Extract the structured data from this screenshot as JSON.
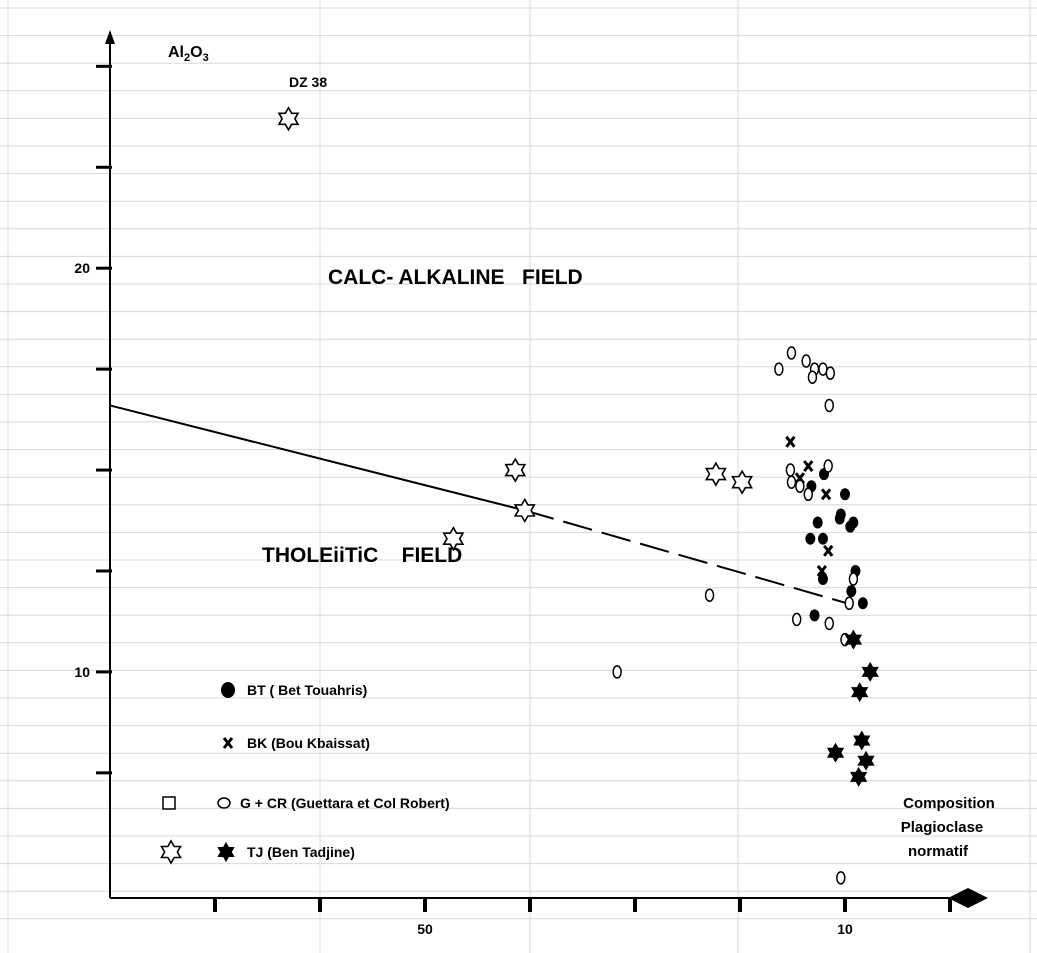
{
  "chart_data": {
    "type": "scatter",
    "title": "",
    "ylabel": {
      "main": "Al",
      "sub1": "2",
      "mid": "O",
      "sub2": "3"
    },
    "xlabel_lines": [
      "Composition",
      "Plagioclase",
      "normatif"
    ],
    "x_tick_labels": [
      {
        "x": 50,
        "text": "50"
      },
      {
        "x": 10,
        "text": "10"
      }
    ],
    "y_tick_labels": [
      {
        "y": 20,
        "text": "20"
      },
      {
        "y": 10,
        "text": "10"
      }
    ],
    "x_ticks": [
      70,
      60,
      50,
      40,
      30,
      20,
      10,
      0
    ],
    "y_ticks": [
      25,
      22.5,
      20,
      17.5,
      15,
      12.5,
      10,
      7.5
    ],
    "xlim": [
      80,
      0
    ],
    "ylim": [
      4.4,
      25.9
    ],
    "fields": {
      "calc_alkaline": "CALC- ALKALINE   FIELD",
      "tholeiitic": "THOLEiiTiC    FIELD"
    },
    "boundary": {
      "solid": [
        [
          80,
          16.6
        ],
        [
          40.5,
          14.0
        ]
      ],
      "dashed": [
        [
          40.5,
          14.0
        ],
        [
          9.8,
          11.7
        ]
      ]
    },
    "annotation": {
      "text": "DZ 38",
      "x": 63,
      "y": 23.7
    },
    "legend": [
      {
        "marker": "filled-circle",
        "text": "BT ( Bet Touahris)"
      },
      {
        "marker": "x",
        "text": "BK (Bou Kbaissat)"
      },
      {
        "marker": "open-square+open-ellipse",
        "text": "G + CR  (Guettara et Col Robert)"
      },
      {
        "marker": "open-star+filled-star",
        "text": "TJ      (Ben Tadjine)"
      }
    ],
    "series": [
      {
        "name": "BT ( Bet Touahris)",
        "marker": "filled-circle",
        "points": [
          [
            13.2,
            14.6
          ],
          [
            12.0,
            14.9
          ],
          [
            10.4,
            13.9
          ],
          [
            13.3,
            13.3
          ],
          [
            12.1,
            13.3
          ],
          [
            9.0,
            12.5
          ],
          [
            9.4,
            12.0
          ],
          [
            8.3,
            11.7
          ],
          [
            12.6,
            13.7
          ],
          [
            12.9,
            11.4
          ],
          [
            9.5,
            13.6
          ],
          [
            12.1,
            12.3
          ],
          [
            10.5,
            13.8
          ],
          [
            10.0,
            14.4
          ],
          [
            9.2,
            13.7
          ]
        ]
      },
      {
        "name": "BK (Bou Kbaissat)",
        "marker": "x",
        "points": [
          [
            15.2,
            15.7
          ],
          [
            14.3,
            14.8
          ],
          [
            11.6,
            13.0
          ],
          [
            13.5,
            15.1
          ],
          [
            11.8,
            14.4
          ],
          [
            12.2,
            12.5
          ]
        ]
      },
      {
        "name": "G + CR  (Guettara et Col Robert)",
        "marker": "open-ellipse",
        "points": [
          [
            15.1,
            17.9
          ],
          [
            16.3,
            17.5
          ],
          [
            13.7,
            17.7
          ],
          [
            12.1,
            17.5
          ],
          [
            11.4,
            17.4
          ],
          [
            12.9,
            17.5
          ],
          [
            13.1,
            17.3
          ],
          [
            11.5,
            16.6
          ],
          [
            15.2,
            15.0
          ],
          [
            11.6,
            15.1
          ],
          [
            15.1,
            14.7
          ],
          [
            13.5,
            14.4
          ],
          [
            14.3,
            14.6
          ],
          [
            9.2,
            12.3
          ],
          [
            9.6,
            11.7
          ],
          [
            14.6,
            11.3
          ],
          [
            11.5,
            11.2
          ],
          [
            22.9,
            11.9
          ],
          [
            31.7,
            10.0
          ],
          [
            10.0,
            10.8
          ],
          [
            10.4,
            4.9
          ]
        ]
      },
      {
        "name": "TJ open (DZ 38)",
        "marker": "open-star",
        "points": [
          [
            63.0,
            23.7
          ],
          [
            41.4,
            15.0
          ],
          [
            40.5,
            14.0
          ],
          [
            47.3,
            13.3
          ],
          [
            19.8,
            14.7
          ],
          [
            22.3,
            14.9
          ]
        ]
      },
      {
        "name": "TJ      (Ben Tadjine)",
        "marker": "filled-star",
        "points": [
          [
            9.2,
            10.8
          ],
          [
            7.6,
            10.0
          ],
          [
            8.6,
            9.5
          ],
          [
            8.4,
            8.3
          ],
          [
            8.0,
            7.8
          ],
          [
            10.9,
            8.0
          ],
          [
            8.7,
            7.4
          ]
        ]
      }
    ]
  }
}
